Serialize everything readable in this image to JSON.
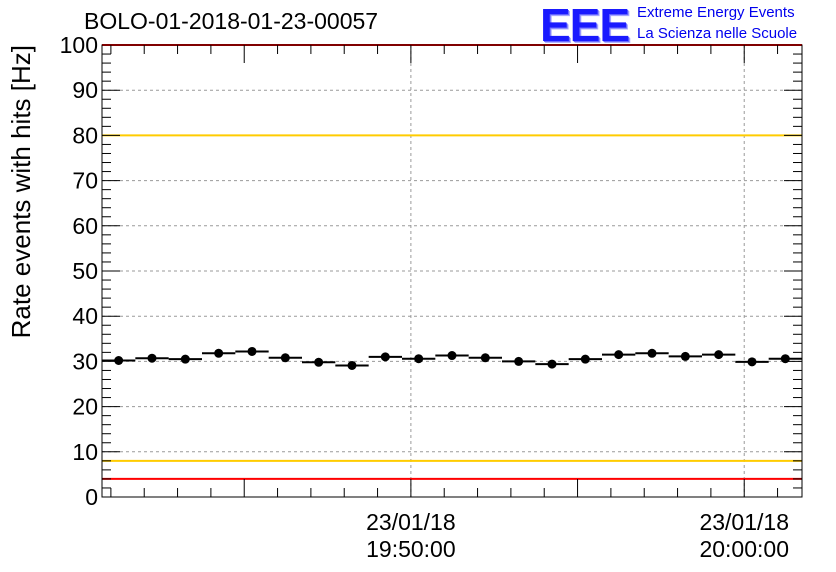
{
  "header": {
    "run_title": "BOLO-01-2018-01-23-00057"
  },
  "logo": {
    "mark": "EEE",
    "line1": "Extreme Energy Events",
    "line2": "La Scienza nelle Scuole",
    "color": "#0000ee"
  },
  "chart_data": {
    "type": "scatter",
    "title": "BOLO-01-2018-01-23-00057",
    "ylabel": "Rate events with hits [Hz]",
    "xlabel": "",
    "ylim": [
      0,
      100
    ],
    "xlim": [
      "2018-01-23 19:40:44",
      "2018-01-23 20:01:44"
    ],
    "grid": true,
    "y_ticks": [
      "0",
      "10",
      "20",
      "30",
      "40",
      "50",
      "60",
      "70",
      "80",
      "90",
      "100"
    ],
    "x_ticks": [
      {
        "time": "2018-01-23 19:50:00",
        "date_label": "23/01/18",
        "time_label": "19:50:00"
      },
      {
        "time": "2018-01-23 20:00:00",
        "date_label": "23/01/18",
        "time_label": "20:00:00"
      }
    ],
    "bin_width": "1 min",
    "series": [
      {
        "marker": "filled-circle",
        "color": "#000000",
        "error_bars": "horizontal",
        "x": [
          "19:41:14",
          "19:42:14",
          "19:43:14",
          "19:44:14",
          "19:45:14",
          "19:46:14",
          "19:47:14",
          "19:48:14",
          "19:49:14",
          "19:50:14",
          "19:51:14",
          "19:52:14",
          "19:53:14",
          "19:54:14",
          "19:55:14",
          "19:56:14",
          "19:57:14",
          "19:58:14",
          "19:59:14",
          "20:00:14",
          "20:01:14"
        ],
        "y": [
          30.2,
          30.7,
          30.5,
          31.8,
          32.2,
          30.8,
          29.8,
          29.1,
          31.0,
          30.6,
          31.3,
          30.8,
          30.0,
          29.4,
          30.5,
          31.5,
          31.8,
          31.1,
          31.5,
          29.9,
          30.6
        ]
      }
    ],
    "thresholds": [
      {
        "value": 100,
        "color": "#ff0000"
      },
      {
        "value": 80,
        "color": "#ffcc00"
      },
      {
        "value": 8,
        "color": "#ffcc00"
      },
      {
        "value": 4,
        "color": "#ff0000"
      }
    ]
  }
}
